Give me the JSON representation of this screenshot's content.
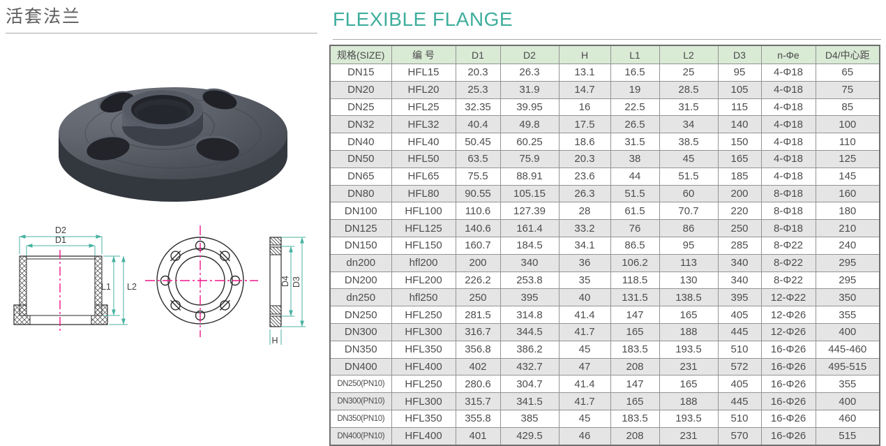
{
  "page": {
    "title_cn": "活套法兰",
    "title_en": "FLEXIBLE FLANGE"
  },
  "colors": {
    "accent_teal": "#3fae9d",
    "dimension_line_teal": "#49b2a2",
    "centerline_pink": "#f0168c",
    "table_header_green": "#d9ead5",
    "table_alt_row_gray": "#e5e5e5",
    "flange_body_gray": "#4a4f58"
  },
  "diagram": {
    "d1": "D1",
    "d2": "D2",
    "l1": "L1",
    "l2": "L2",
    "d3": "D3",
    "d4": "D4",
    "h": "H"
  },
  "table": {
    "headers": [
      "规格(SIZE)",
      "编 号",
      "D1",
      "D2",
      "H",
      "L1",
      "L2",
      "D3",
      "n-Φe",
      "D4/中心距"
    ],
    "rows": [
      [
        "DN15",
        "HFL15",
        "20.3",
        "26.3",
        "13.1",
        "16.5",
        "25",
        "95",
        "4-Φ18",
        "65"
      ],
      [
        "DN20",
        "HFL20",
        "25.3",
        "31.9",
        "14.7",
        "19",
        "28.5",
        "105",
        "4-Φ18",
        "75"
      ],
      [
        "DN25",
        "HFL25",
        "32.35",
        "39.95",
        "16",
        "22.5",
        "31.5",
        "115",
        "4-Φ18",
        "85"
      ],
      [
        "DN32",
        "HFL32",
        "40.4",
        "49.8",
        "17.5",
        "26.5",
        "34",
        "140",
        "4-Φ18",
        "100"
      ],
      [
        "DN40",
        "HFL40",
        "50.45",
        "60.25",
        "18.6",
        "31.5",
        "38.5",
        "150",
        "4-Φ18",
        "110"
      ],
      [
        "DN50",
        "HFL50",
        "63.5",
        "75.9",
        "20.3",
        "38",
        "45",
        "165",
        "4-Φ18",
        "125"
      ],
      [
        "DN65",
        "HFL65",
        "75.5",
        "88.91",
        "23.6",
        "44",
        "51.5",
        "185",
        "4-Φ18",
        "145"
      ],
      [
        "DN80",
        "HFL80",
        "90.55",
        "105.15",
        "26.3",
        "51.5",
        "60",
        "200",
        "8-Φ18",
        "160"
      ],
      [
        "DN100",
        "HFL100",
        "110.6",
        "127.39",
        "28",
        "61.5",
        "70.7",
        "220",
        "8-Φ18",
        "180"
      ],
      [
        "DN125",
        "HFL125",
        "140.6",
        "161.4",
        "33.2",
        "76",
        "86",
        "250",
        "8-Φ18",
        "210"
      ],
      [
        "DN150",
        "HFL150",
        "160.7",
        "184.5",
        "34.1",
        "86.5",
        "95",
        "285",
        "8-Φ22",
        "240"
      ],
      [
        "dn200",
        "hfl200",
        "200",
        "340",
        "36",
        "106.2",
        "113",
        "340",
        "8-Φ22",
        "295"
      ],
      [
        "DN200",
        "HFL200",
        "226.2",
        "253.8",
        "35",
        "118.5",
        "130",
        "340",
        "8-Φ22",
        "295"
      ],
      [
        "dn250",
        "hfl250",
        "250",
        "395",
        "40",
        "131.5",
        "138.5",
        "395",
        "12-Φ22",
        "350"
      ],
      [
        "DN250",
        "HFL250",
        "281.5",
        "314.8",
        "41.4",
        "147",
        "165",
        "405",
        "12-Φ26",
        "355"
      ],
      [
        "DN300",
        "HFL300",
        "316.7",
        "344.5",
        "41.7",
        "165",
        "188",
        "445",
        "12-Φ26",
        "400"
      ],
      [
        "DN350",
        "HFL350",
        "356.8",
        "386.2",
        "45",
        "183.5",
        "193.5",
        "510",
        "16-Φ26",
        "445-460"
      ],
      [
        "DN400",
        "HFL400",
        "402",
        "432.7",
        "47",
        "208",
        "231",
        "572",
        "16-Φ26",
        "495-515"
      ],
      [
        "DN250(PN10)",
        "HFL250",
        "280.6",
        "304.7",
        "41.4",
        "147",
        "165",
        "405",
        "16-Φ26",
        "355"
      ],
      [
        "DN300(PN10)",
        "HFL300",
        "315.7",
        "341.5",
        "41.7",
        "165",
        "188",
        "445",
        "16-Φ26",
        "400"
      ],
      [
        "DN350(PN10)",
        "HFL350",
        "355.8",
        "385",
        "45",
        "183.5",
        "193.5",
        "510",
        "16-Φ26",
        "460"
      ],
      [
        "DN400(PN10)",
        "HFL400",
        "401",
        "429.5",
        "46",
        "208",
        "231",
        "570",
        "16-Φ26",
        "515"
      ]
    ]
  }
}
